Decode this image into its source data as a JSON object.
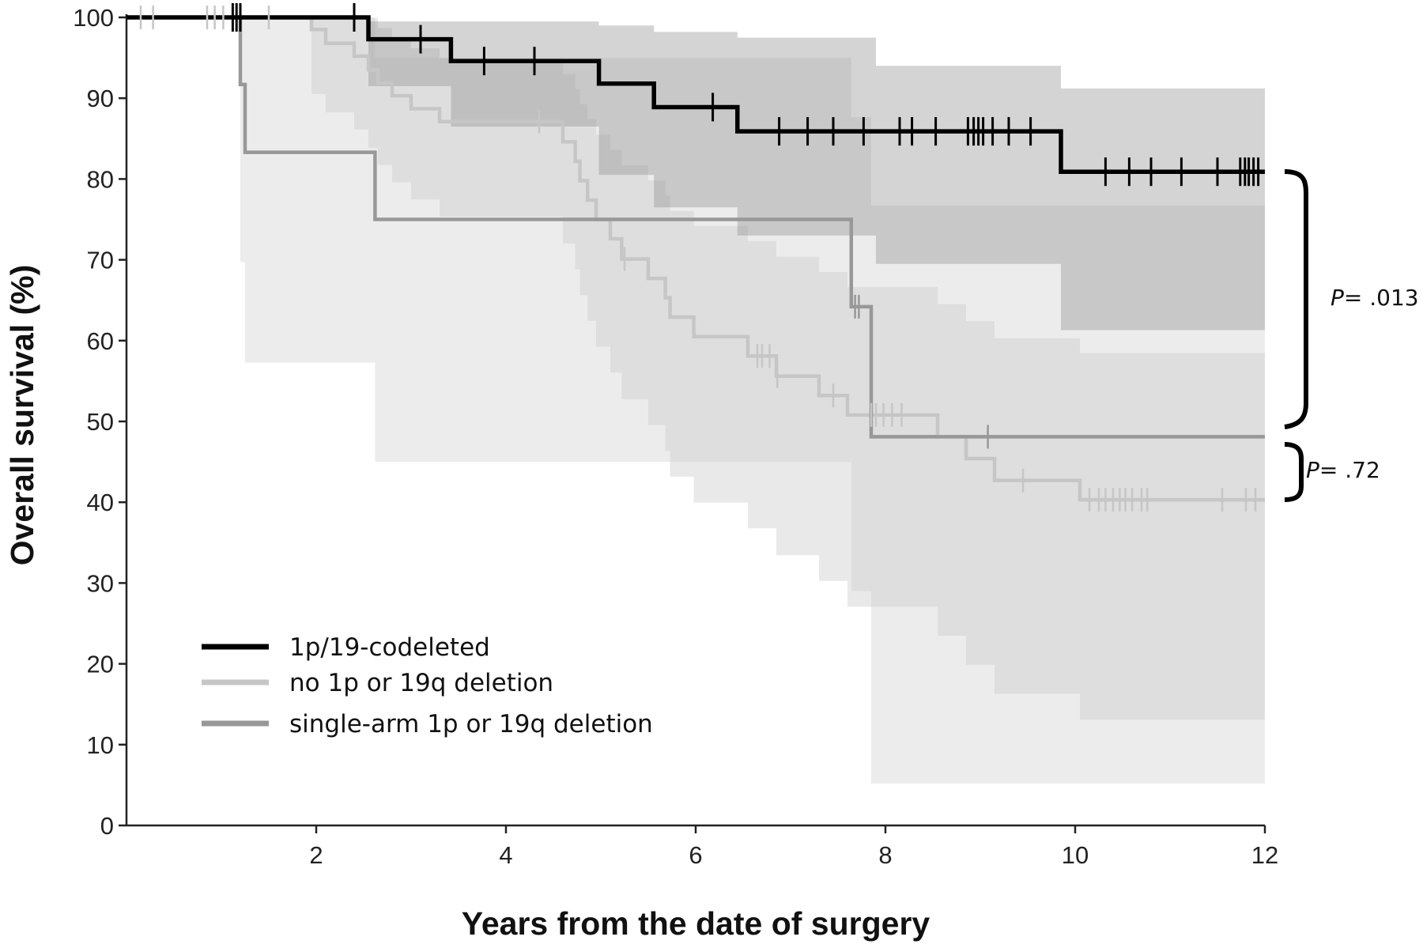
{
  "chart_data": {
    "type": "line",
    "subtype": "kaplan-meier",
    "title": "",
    "xlabel": "Years from the date of surgery",
    "ylabel": "Overall survival (%)",
    "xlim": [
      0,
      12
    ],
    "ylim": [
      0,
      100
    ],
    "xticks": [
      2,
      4,
      6,
      8,
      10,
      12
    ],
    "yticks": [
      0,
      10,
      20,
      30,
      40,
      50,
      60,
      70,
      80,
      90,
      100
    ],
    "grid": false,
    "legend_position": "bottom-left",
    "series": [
      {
        "name": "1p/19-codeleted",
        "color": "#000000",
        "steps": [
          [
            0,
            100
          ],
          [
            2.55,
            97.3
          ],
          [
            3.42,
            94.6
          ],
          [
            4.98,
            91.8
          ],
          [
            5.56,
            88.9
          ],
          [
            6.44,
            85.9
          ],
          [
            9.85,
            80.9
          ],
          [
            12,
            80.9
          ]
        ],
        "censor_times": [
          1.12,
          1.16,
          1.2,
          2.4,
          3.1,
          3.77,
          4.3,
          6.18,
          6.88,
          7.18,
          7.45,
          7.77,
          8.15,
          8.28,
          8.53,
          8.87,
          8.93,
          8.98,
          9.03,
          9.13,
          9.3,
          9.53,
          10.32,
          10.57,
          10.8,
          11.12,
          11.5,
          11.74,
          11.79,
          11.83,
          11.88,
          11.93
        ],
        "ci_bands": [
          [
            0.0,
            100,
            100
          ],
          [
            2.55,
            99.5,
            91.5
          ],
          [
            3.42,
            99.5,
            86.5
          ],
          [
            4.98,
            99,
            80.5
          ],
          [
            5.56,
            98.2,
            76.5
          ],
          [
            6.44,
            97.5,
            73
          ],
          [
            7.9,
            94,
            69.5
          ],
          [
            9.85,
            91.2,
            61.3
          ],
          [
            12,
            91.2,
            61.3
          ]
        ]
      },
      {
        "name": "no 1p or 19q deletion",
        "color": "#c6c6c6",
        "steps": [
          [
            0,
            100
          ],
          [
            1.95,
            98.5
          ],
          [
            2.1,
            96.8
          ],
          [
            2.4,
            95.2
          ],
          [
            2.55,
            93.5
          ],
          [
            2.65,
            91.9
          ],
          [
            2.8,
            90.3
          ],
          [
            3.0,
            88.7
          ],
          [
            3.3,
            87.1
          ],
          [
            4.6,
            84.6
          ],
          [
            4.73,
            82.2
          ],
          [
            4.78,
            79.8
          ],
          [
            4.86,
            77.4
          ],
          [
            4.95,
            75
          ],
          [
            5.1,
            72.6
          ],
          [
            5.22,
            70.1
          ],
          [
            5.5,
            67.7
          ],
          [
            5.68,
            65.3
          ],
          [
            5.73,
            62.9
          ],
          [
            5.98,
            60.5
          ],
          [
            6.55,
            58.1
          ],
          [
            6.85,
            55.6
          ],
          [
            7.3,
            53.2
          ],
          [
            7.6,
            50.8
          ],
          [
            8.55,
            48.1
          ],
          [
            8.85,
            45.4
          ],
          [
            9.15,
            42.7
          ],
          [
            10.05,
            40.3
          ],
          [
            12,
            40.3
          ]
        ],
        "censor_times": [
          0.15,
          0.28,
          0.85,
          0.93,
          1.02,
          1.5,
          4.35,
          5.25,
          6.65,
          6.7,
          6.78,
          6.86,
          7.45,
          7.85,
          7.9,
          7.98,
          8.07,
          8.17,
          9.45,
          10.15,
          10.25,
          10.32,
          10.4,
          10.47,
          10.53,
          10.6,
          10.7,
          10.76,
          11.55,
          11.8,
          11.9
        ]
      },
      {
        "name": "single-arm 1p or 19q deletion",
        "color": "#989898",
        "steps": [
          [
            0,
            100
          ],
          [
            1.2,
            91.7
          ],
          [
            1.25,
            83.3
          ],
          [
            2.62,
            75
          ],
          [
            7.64,
            64.2
          ],
          [
            7.85,
            48.1
          ],
          [
            12,
            48.1
          ]
        ],
        "censor_times": [
          7.68,
          7.72,
          9.08
        ]
      }
    ],
    "shaded_regions_note_free": true,
    "annotations": [
      {
        "text_italic": "P",
        "text_rest": "= .013",
        "between": [
          "1p/19-codeleted",
          "single-arm 1p or 19q deletion"
        ]
      },
      {
        "text_italic": "P",
        "text_rest": "= .72",
        "between": [
          "single-arm 1p or 19q deletion",
          "no 1p or 19q deletion"
        ]
      }
    ]
  }
}
